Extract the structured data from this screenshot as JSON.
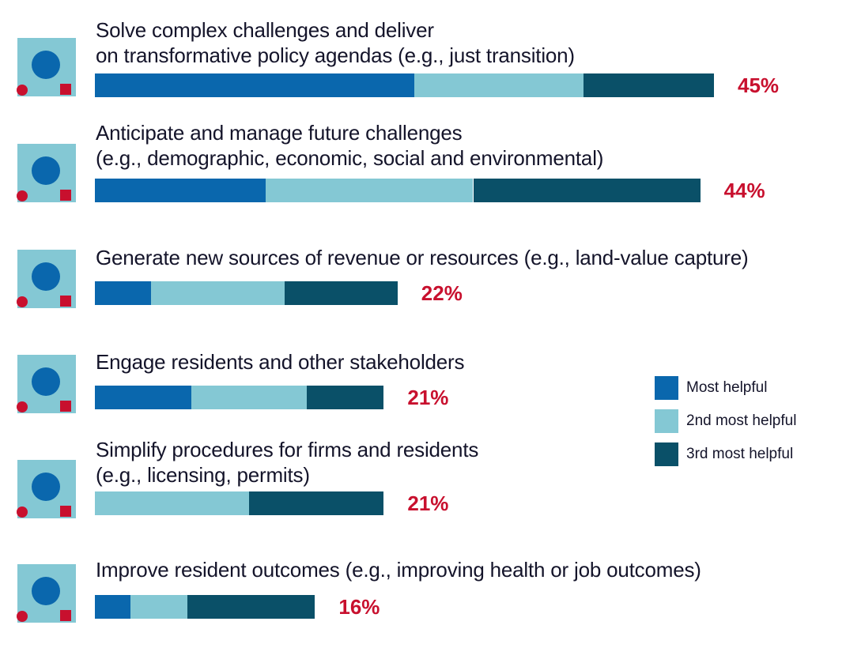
{
  "chart_data": {
    "type": "stacked-hbar",
    "categories": [
      "Solve complex challenges and deliver\non transformative policy agendas (e.g., just transition)",
      "Anticipate and manage future challenges\n(e.g., demographic, economic, social and environmental)",
      "Generate new sources of revenue or resources (e.g., land-value capture)",
      "Engage residents and other stakeholders",
      "Simplify procedures for firms and residents\n(e.g., licensing, permits)",
      "Improve resident outcomes (e.g., improving health or job outcomes)"
    ],
    "series": [
      {
        "name": "Most helpful",
        "color": "#0a67ad",
        "values": [
          23.2,
          12.4,
          4.1,
          7.0,
          0,
          2.6
        ]
      },
      {
        "name": "2nd most helpful",
        "color": "#84c8d4",
        "values": [
          12.3,
          15.1,
          9.7,
          8.4,
          11.2,
          4.1
        ]
      },
      {
        "name": "3rd most helpful",
        "color": "#0a5068",
        "values": [
          9.5,
          16.5,
          8.2,
          5.6,
          9.8,
          9.3
        ]
      }
    ],
    "totals": [
      45,
      44,
      22,
      21,
      21,
      16
    ],
    "total_labels": [
      "45%",
      "44%",
      "22%",
      "21%",
      "21%",
      "16%"
    ]
  }
}
